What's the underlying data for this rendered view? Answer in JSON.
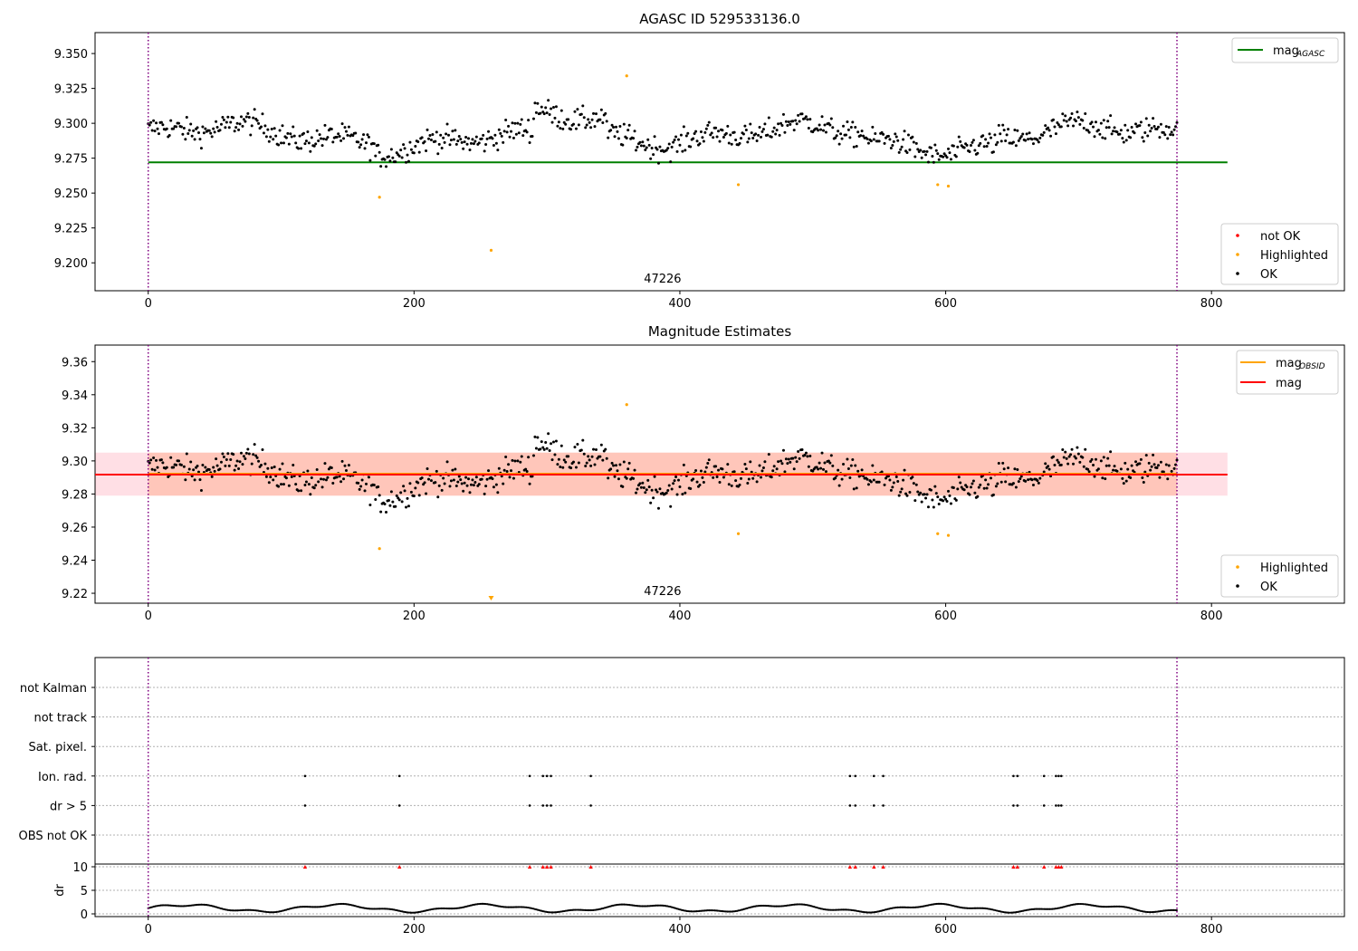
{
  "figure": {
    "panel1_title": "AGASC ID 529533136.0",
    "panel2_title": "Magnitude Estimates",
    "panel_annotation": "47226"
  },
  "chart_data": [
    {
      "type": "scatter",
      "title": "AGASC ID 529533136.0",
      "xlim": [
        -40,
        900
      ],
      "ylim": [
        9.18,
        9.365
      ],
      "x_ticks": [
        0,
        200,
        400,
        600,
        800
      ],
      "y_ticks": [
        9.2,
        9.225,
        9.25,
        9.275,
        9.3,
        9.325,
        9.35
      ],
      "annotation": {
        "text": "47226",
        "x": 387
      },
      "vertical_lines": [
        {
          "x": 0,
          "style": "dotted",
          "color": "#800080"
        },
        {
          "x": 774,
          "style": "dotted",
          "color": "#800080"
        }
      ],
      "horizontal_lines": [
        {
          "name": "mag_AGASC",
          "y": 9.272,
          "x_range": [
            0,
            812
          ],
          "color": "#008000"
        }
      ],
      "legend_upper": [
        {
          "label": "mag",
          "subscript": "AGASC",
          "color": "#008000"
        }
      ],
      "legend_lower": [
        {
          "label": "not OK",
          "color": "#ff0000"
        },
        {
          "label": "Highlighted",
          "color": "#ffa500"
        },
        {
          "label": "OK",
          "color": "#000000"
        }
      ],
      "legend_placement": [
        "upper right",
        "lower right"
      ],
      "series": [
        {
          "name": "OK",
          "color": "#000000",
          "note": "about 780 points, x from 0 to 774, mag between 9.256 and 9.326 (mean about 9.292)"
        },
        {
          "name": "Highlighted",
          "color": "#ffa500",
          "points": [
            [
              174,
              9.247
            ],
            [
              258,
              9.209
            ],
            [
              360,
              9.334
            ],
            [
              444,
              9.256
            ],
            [
              594,
              9.256
            ],
            [
              602,
              9.255
            ]
          ]
        },
        {
          "name": "not OK",
          "color": "#ff0000",
          "points": []
        }
      ]
    },
    {
      "type": "scatter",
      "title": "Magnitude Estimates",
      "xlim": [
        -40,
        900
      ],
      "ylim": [
        9.214,
        9.37
      ],
      "x_ticks": [
        0,
        200,
        400,
        600,
        800
      ],
      "y_ticks": [
        9.22,
        9.24,
        9.26,
        9.28,
        9.3,
        9.32,
        9.34,
        9.36
      ],
      "annotation": {
        "text": "47226",
        "x": 387
      },
      "vertical_lines": [
        {
          "x": 0,
          "style": "dotted",
          "color": "#800080"
        },
        {
          "x": 774,
          "style": "dotted",
          "color": "#800080"
        }
      ],
      "horizontal_lines": [
        {
          "name": "mag_OBSID",
          "y": 9.292,
          "x_range": [
            0,
            774
          ],
          "color": "#ffa500"
        },
        {
          "name": "mag",
          "y": 9.292,
          "x_range": [
            -40,
            812
          ],
          "color": "#ff0000"
        }
      ],
      "bands": [
        {
          "y": [
            9.279,
            9.305
          ],
          "x_range": [
            -40,
            812
          ],
          "color": "#ffc0cb"
        },
        {
          "y": [
            9.279,
            9.305
          ],
          "x_range": [
            0,
            774
          ],
          "color": "#ffa07a"
        }
      ],
      "legend_upper": [
        {
          "label": "mag",
          "subscript": "OBSID",
          "color": "#ffa500"
        },
        {
          "label": "mag",
          "subscript": "",
          "color": "#ff0000"
        }
      ],
      "legend_lower": [
        {
          "label": "Highlighted",
          "color": "#ffa500"
        },
        {
          "label": "OK",
          "color": "#000000"
        }
      ],
      "legend_placement": [
        "upper right",
        "lower right"
      ],
      "series": [
        {
          "name": "OK",
          "color": "#000000",
          "note": "same points as panel 1"
        },
        {
          "name": "Highlighted",
          "color": "#ffa500",
          "points": [
            [
              174,
              9.247
            ],
            [
              360,
              9.334
            ],
            [
              444,
              9.256
            ],
            [
              594,
              9.256
            ],
            [
              602,
              9.255
            ]
          ]
        },
        {
          "name": "Highlighted (below axis range)",
          "color": "#ffa500",
          "marker": "triangle-down",
          "points": [
            [
              258,
              9.209
            ]
          ]
        }
      ]
    },
    {
      "type": "scatter",
      "xlim": [
        -40,
        900
      ],
      "x_ticks": [
        0,
        200,
        400,
        600,
        800
      ],
      "categories": [
        "not Kalman",
        "not track",
        "Sat. pixel.",
        "Ion. rad.",
        "dr > 5",
        "OBS not OK"
      ],
      "grid": "horizontal dotted",
      "flag_x": {
        "Ion. rad.": [
          118,
          189,
          287,
          297,
          300,
          303,
          333,
          528,
          532,
          546,
          553,
          651,
          654,
          674,
          683,
          685,
          687
        ],
        "dr > 5": [
          118,
          189,
          287,
          297,
          300,
          303,
          333,
          528,
          532,
          546,
          553,
          651,
          654,
          674,
          683,
          685,
          687
        ]
      }
    },
    {
      "type": "scatter",
      "ylabel": "dr",
      "xlim": [
        -40,
        900
      ],
      "ylim": [
        -0.3,
        10.3
      ],
      "x_ticks": [
        0,
        200,
        400,
        600,
        800
      ],
      "y_ticks": [
        0,
        5,
        10
      ],
      "grid": "horizontal dotted",
      "series": [
        {
          "name": "dr",
          "color": "#000000",
          "note": "dr between 0 and 2.2 for x from 0 to 774"
        },
        {
          "name": "dr > 5",
          "color": "#ff0000",
          "marker": "triangle-up",
          "y": 10,
          "x": [
            118,
            189,
            287,
            297,
            300,
            303,
            333,
            528,
            532,
            546,
            553,
            651,
            654,
            674,
            683,
            685,
            687
          ]
        }
      ]
    }
  ]
}
